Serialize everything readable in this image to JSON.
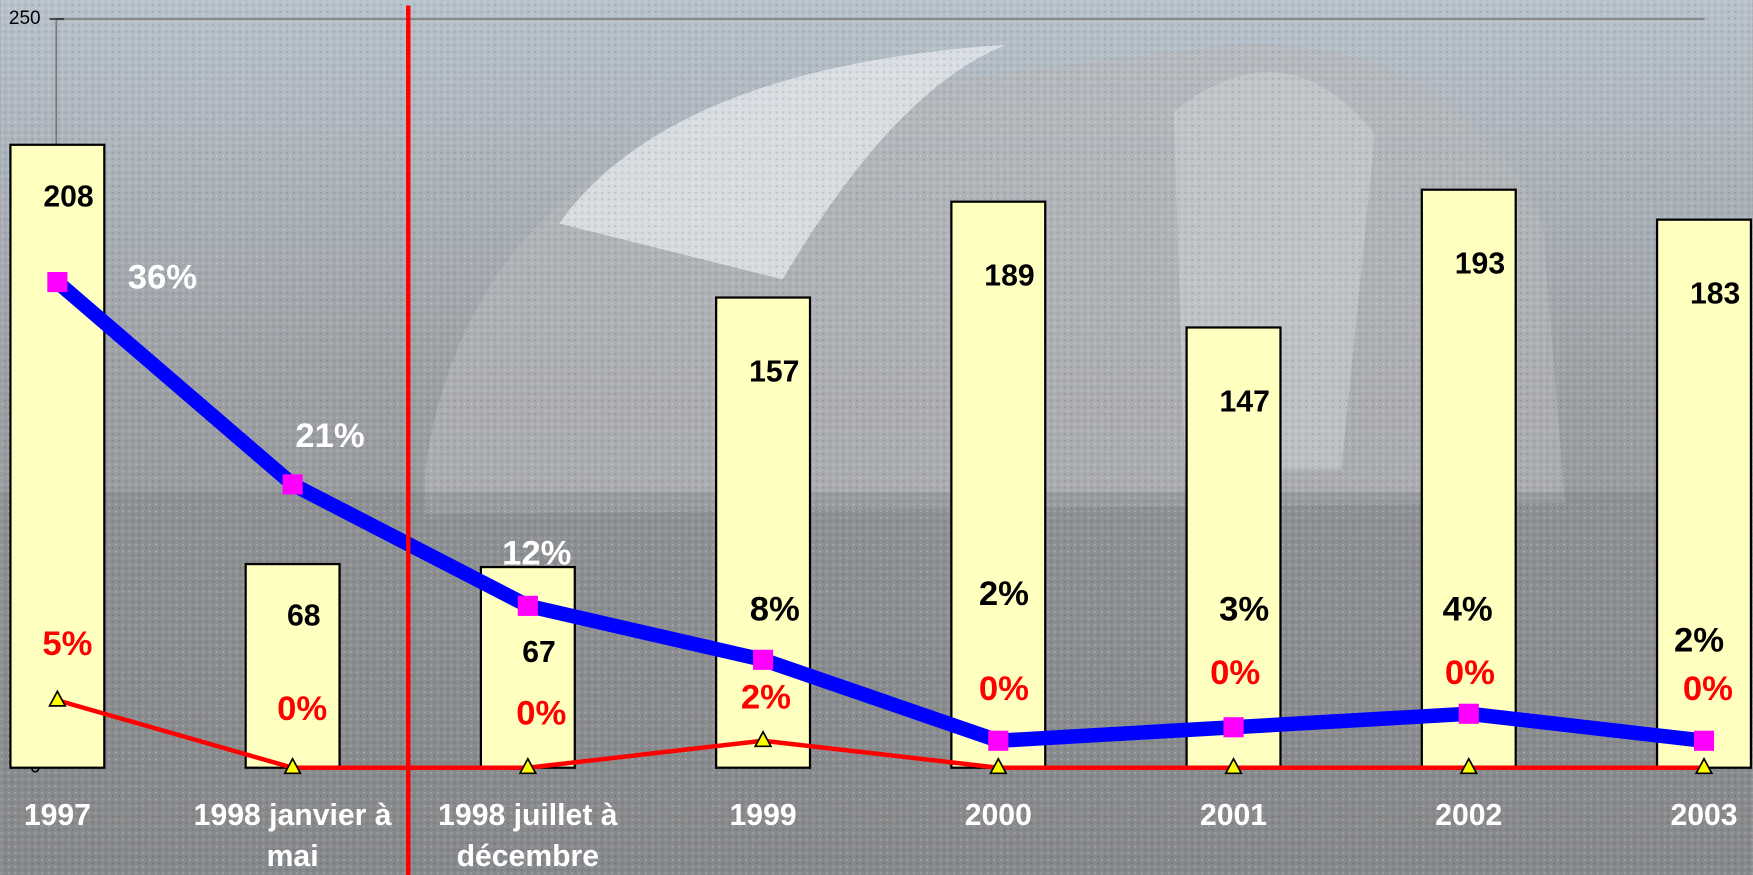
{
  "chart_data": {
    "type": "bar",
    "categories": [
      "1997",
      "1998 janvier à mai",
      "1998  juillet à décembre",
      "1999",
      "2000",
      "2001",
      "2002",
      "2003"
    ],
    "ylim": [
      0,
      250
    ],
    "yticks": [
      0,
      50,
      100,
      150,
      200,
      250
    ],
    "y2lim": [
      0,
      55.5
    ],
    "series": [
      {
        "type": "bar",
        "color": "#ffffc0",
        "values": [
          208,
          68,
          67,
          157,
          189,
          147,
          193,
          183
        ]
      },
      {
        "type": "line",
        "axis": "y2",
        "color": "#0000ff",
        "marker_color": "#ff00ff",
        "values": [
          36,
          21,
          12,
          8,
          2,
          3,
          4,
          2
        ],
        "value_labels": [
          "36%",
          "21%",
          "12%",
          "8%",
          "2%",
          "3%",
          "4%",
          "2%"
        ]
      },
      {
        "type": "line",
        "axis": "y2",
        "color": "#ff0000",
        "marker_color": "#ffff00",
        "values": [
          5,
          0,
          0,
          2,
          0,
          0,
          0,
          0
        ],
        "value_labels": [
          "5%",
          "0%",
          "0%",
          "2%",
          "0%",
          "0%",
          "0%",
          "0%"
        ]
      }
    ]
  }
}
